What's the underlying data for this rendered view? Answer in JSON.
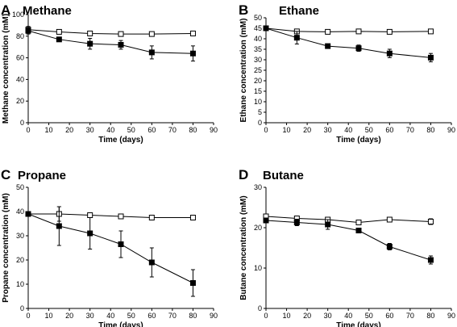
{
  "chart_data": [
    {
      "type": "line",
      "panel": "A",
      "title": "Methane",
      "xlabel": "Time (days)",
      "ylabel": "Methane concentration (mM)",
      "xlim": [
        0,
        90
      ],
      "ylim": [
        0,
        100
      ],
      "xticks": [
        0,
        10,
        20,
        30,
        40,
        50,
        60,
        70,
        80,
        90
      ],
      "yticks": [
        0,
        20,
        40,
        60,
        80,
        100
      ],
      "x": [
        0,
        15,
        30,
        45,
        60,
        80
      ],
      "series": [
        {
          "marker": "open-square",
          "values": [
            86,
            84,
            82.5,
            82,
            82,
            82.5
          ],
          "errors": [
            3,
            1,
            1,
            1,
            1,
            1
          ]
        },
        {
          "marker": "filled-square",
          "values": [
            85,
            77,
            73,
            72,
            65,
            64
          ],
          "errors": [
            3,
            1.5,
            5,
            4,
            6,
            7
          ]
        }
      ]
    },
    {
      "type": "line",
      "panel": "B",
      "title": "Ethane",
      "xlabel": "Time (days)",
      "ylabel": "Ethane concentration (mM)",
      "xlim": [
        0,
        90
      ],
      "ylim": [
        0,
        50
      ],
      "xticks": [
        0,
        10,
        20,
        30,
        40,
        50,
        60,
        70,
        80,
        90
      ],
      "yticks": [
        0,
        5,
        10,
        15,
        20,
        25,
        30,
        35,
        40,
        45,
        50
      ],
      "x": [
        0,
        15,
        30,
        45,
        60,
        80
      ],
      "series": [
        {
          "marker": "open-square",
          "values": [
            45,
            43.5,
            43.3,
            43.5,
            43.3,
            43.5
          ],
          "errors": [
            0.5,
            0.5,
            0.5,
            0.5,
            0.5,
            0.5
          ]
        },
        {
          "marker": "filled-square",
          "values": [
            45,
            40.5,
            36.5,
            35.5,
            33,
            31
          ],
          "errors": [
            0.5,
            3,
            0.5,
            1.5,
            2,
            2
          ]
        }
      ]
    },
    {
      "type": "line",
      "panel": "C",
      "title": "Propane",
      "xlabel": "Time (days)",
      "ylabel": "Propane concentration (mM)",
      "xlim": [
        0,
        90
      ],
      "ylim": [
        0,
        50
      ],
      "xticks": [
        0,
        10,
        20,
        30,
        40,
        50,
        60,
        70,
        80,
        90
      ],
      "yticks": [
        0,
        10,
        20,
        30,
        40,
        50
      ],
      "x": [
        0,
        15,
        30,
        45,
        60,
        80
      ],
      "series": [
        {
          "marker": "open-square",
          "values": [
            39,
            39,
            38.5,
            38,
            37.5,
            37.5
          ],
          "errors": [
            1,
            3,
            1,
            1,
            0.5,
            0.5
          ]
        },
        {
          "marker": "filled-square",
          "values": [
            39,
            34,
            31,
            26.5,
            19,
            10.5
          ],
          "errors": [
            1,
            8,
            6.5,
            5.5,
            6,
            5.5
          ]
        }
      ]
    },
    {
      "type": "line",
      "panel": "D",
      "title": "Butane",
      "xlabel": "Time (days)",
      "ylabel": "Butane concentration (mM)",
      "xlim": [
        0,
        90
      ],
      "ylim": [
        0,
        30
      ],
      "xticks": [
        0,
        10,
        20,
        30,
        40,
        50,
        60,
        70,
        80,
        90
      ],
      "yticks": [
        0,
        10,
        20,
        30
      ],
      "x": [
        0,
        15,
        30,
        45,
        60,
        80
      ],
      "series": [
        {
          "marker": "open-square",
          "values": [
            22.8,
            22.3,
            22,
            21.3,
            22,
            21.5
          ],
          "errors": [
            0.5,
            0.5,
            0.5,
            0.3,
            0.3,
            0.7
          ]
        },
        {
          "marker": "filled-square",
          "values": [
            21.8,
            21.3,
            20.8,
            19.3,
            15.3,
            12
          ],
          "errors": [
            0.5,
            0.8,
            1.2,
            0.5,
            0.8,
            1
          ]
        }
      ]
    }
  ]
}
